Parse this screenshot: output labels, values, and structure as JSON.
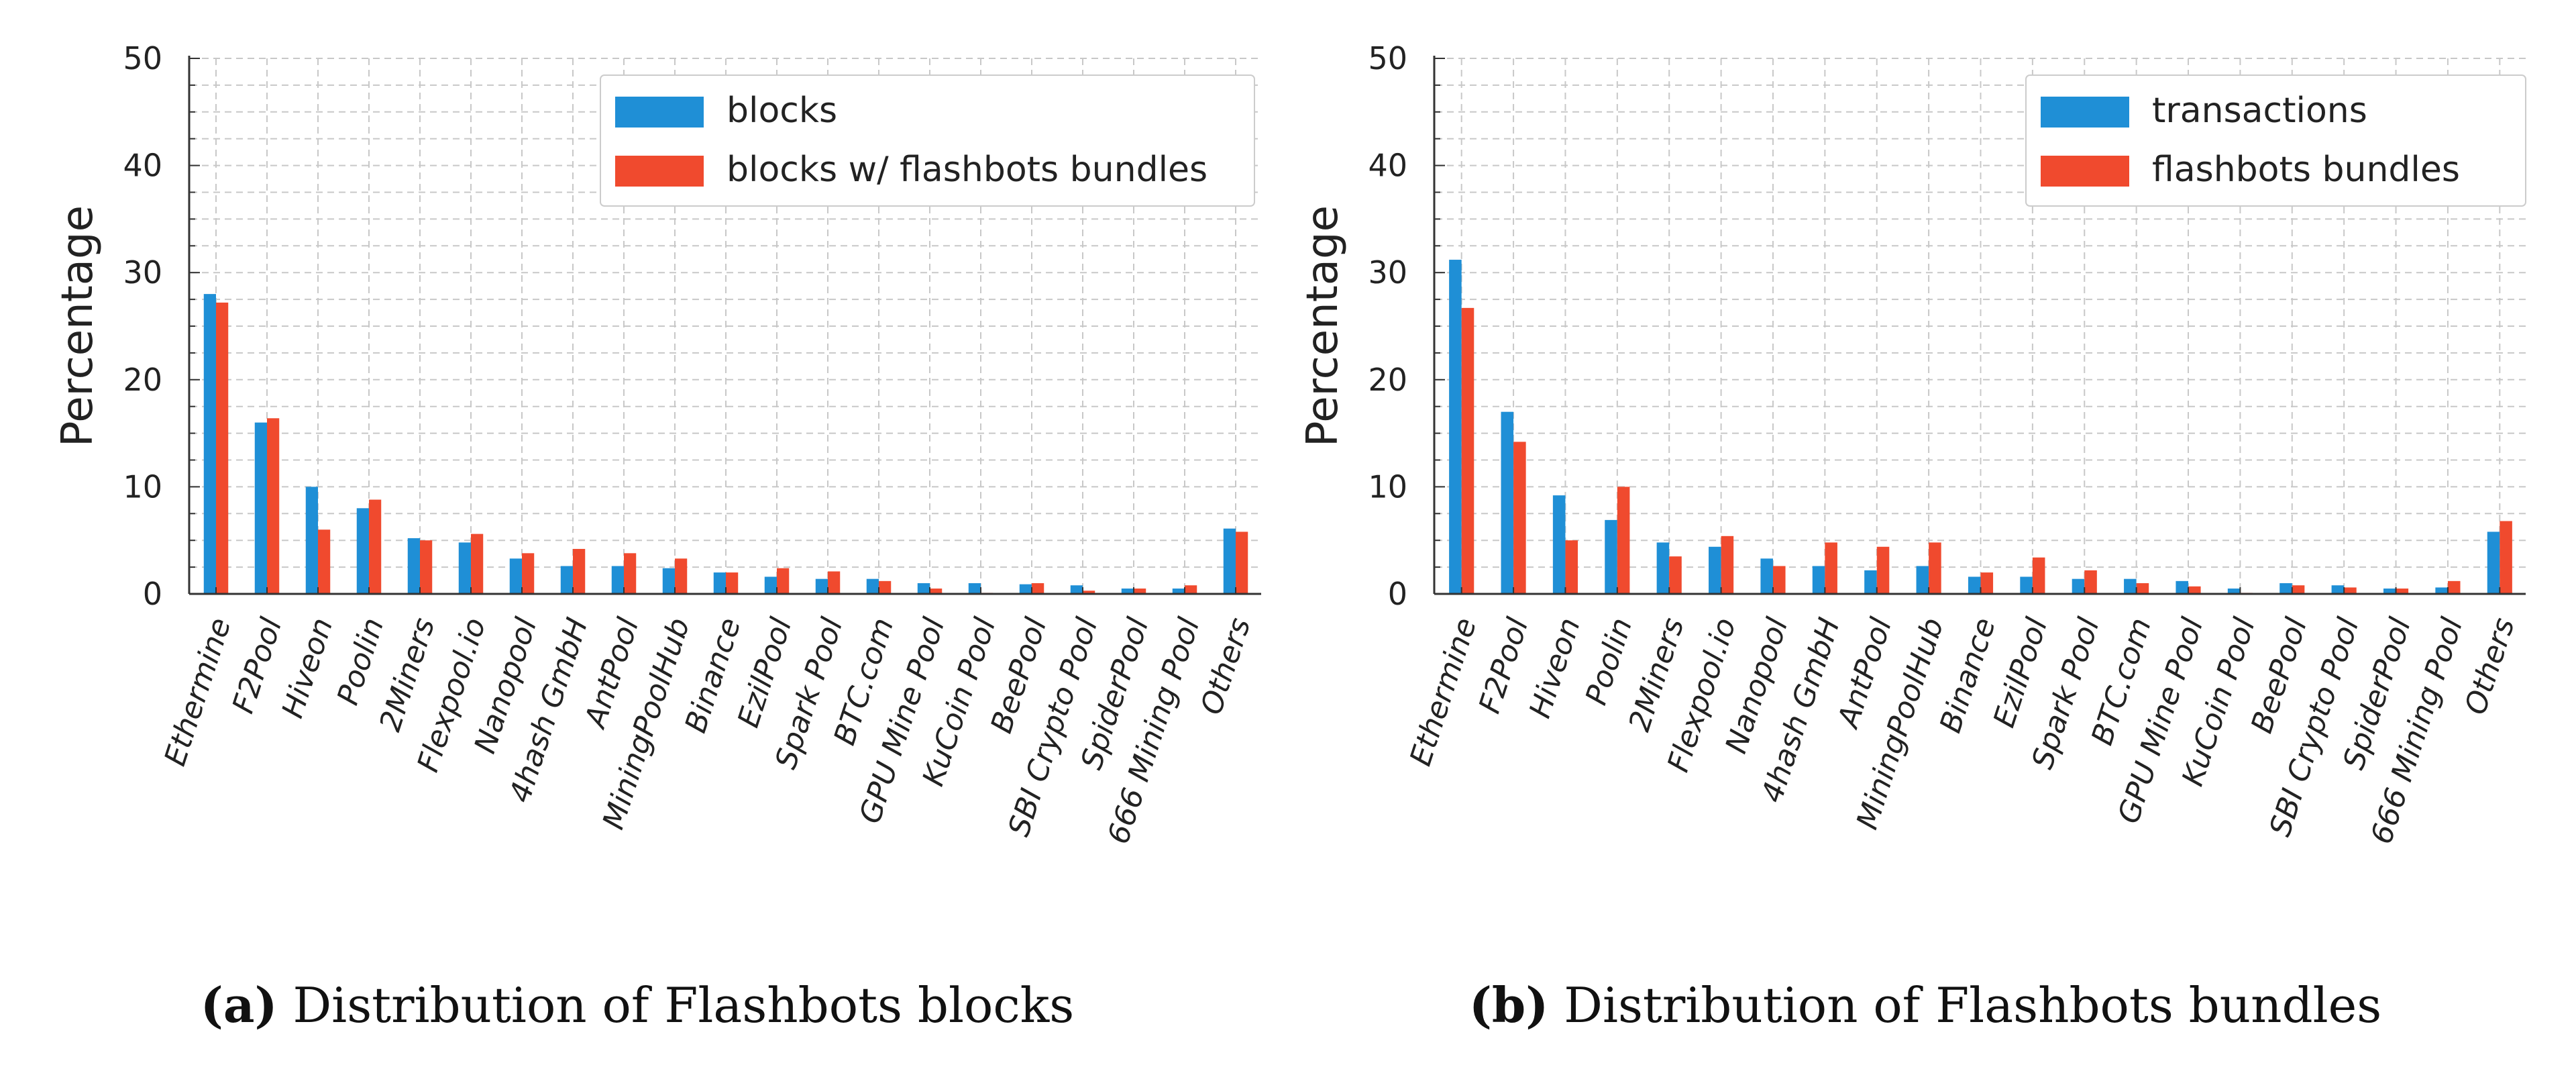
{
  "colors": {
    "blue": "#1f8fd6",
    "red": "#f04a2e",
    "grid": "#c8c8c8",
    "axis": "#333333"
  },
  "captions": [
    {
      "label": "(a)",
      "text": "Distribution of Flashbots blocks"
    },
    {
      "label": "(b)",
      "text": "Distribution of Flashbots bundles"
    }
  ],
  "chart_data": [
    {
      "type": "bar",
      "title": "",
      "xlabel": "",
      "ylabel": "Percentage",
      "ylim": [
        0,
        50
      ],
      "yticks": [
        0,
        10,
        20,
        30,
        40,
        50
      ],
      "grid": true,
      "legend_position": "top-right",
      "categories": [
        "Ethermine",
        "F2Pool",
        "Hiveon",
        "Poolin",
        "2Miners",
        "Flexpool.io",
        "Nanopool",
        "4hash GmbH",
        "AntPool",
        "MiningPoolHub",
        "Binance",
        "EzilPool",
        "Spark Pool",
        "BTC.com",
        "GPU Mine Pool",
        "KuCoin Pool",
        "BeePool",
        "SBI Crypto Pool",
        "SpiderPool",
        "666 Mining Pool",
        "Others"
      ],
      "series": [
        {
          "name": "blocks",
          "color": "#1f8fd6",
          "values": [
            28.0,
            16.0,
            10.0,
            8.0,
            5.2,
            4.8,
            3.3,
            2.6,
            2.6,
            2.4,
            2.0,
            1.6,
            1.4,
            1.4,
            1.0,
            1.0,
            0.9,
            0.8,
            0.5,
            0.5,
            6.1
          ]
        },
        {
          "name": "blocks w/ flashbots bundles",
          "color": "#f04a2e",
          "values": [
            27.2,
            16.4,
            6.0,
            8.8,
            5.0,
            5.6,
            3.8,
            4.2,
            3.8,
            3.3,
            2.0,
            2.4,
            2.1,
            1.2,
            0.5,
            0.1,
            1.0,
            0.3,
            0.5,
            0.8,
            5.8
          ]
        }
      ]
    },
    {
      "type": "bar",
      "title": "",
      "xlabel": "",
      "ylabel": "Percentage",
      "ylim": [
        0,
        50
      ],
      "yticks": [
        0,
        10,
        20,
        30,
        40,
        50
      ],
      "grid": true,
      "legend_position": "top-right",
      "categories": [
        "Ethermine",
        "F2Pool",
        "Hiveon",
        "Poolin",
        "2Miners",
        "Flexpool.io",
        "Nanopool",
        "4hash GmbH",
        "AntPool",
        "MiningPoolHub",
        "Binance",
        "EzilPool",
        "Spark Pool",
        "BTC.com",
        "GPU Mine Pool",
        "KuCoin Pool",
        "BeePool",
        "SBI Crypto Pool",
        "SpiderPool",
        "666 Mining Pool",
        "Others"
      ],
      "series": [
        {
          "name": "transactions",
          "color": "#1f8fd6",
          "values": [
            31.2,
            17.0,
            9.2,
            6.9,
            4.8,
            4.4,
            3.3,
            2.6,
            2.2,
            2.6,
            1.6,
            1.6,
            1.4,
            1.4,
            1.2,
            0.5,
            1.0,
            0.8,
            0.5,
            0.6,
            5.8
          ]
        },
        {
          "name": "flashbots bundles",
          "color": "#f04a2e",
          "values": [
            26.7,
            14.2,
            5.0,
            10.0,
            3.5,
            5.4,
            2.6,
            4.8,
            4.4,
            4.8,
            2.0,
            3.4,
            2.2,
            1.0,
            0.7,
            0.1,
            0.8,
            0.6,
            0.5,
            1.2,
            6.8
          ]
        }
      ]
    }
  ]
}
